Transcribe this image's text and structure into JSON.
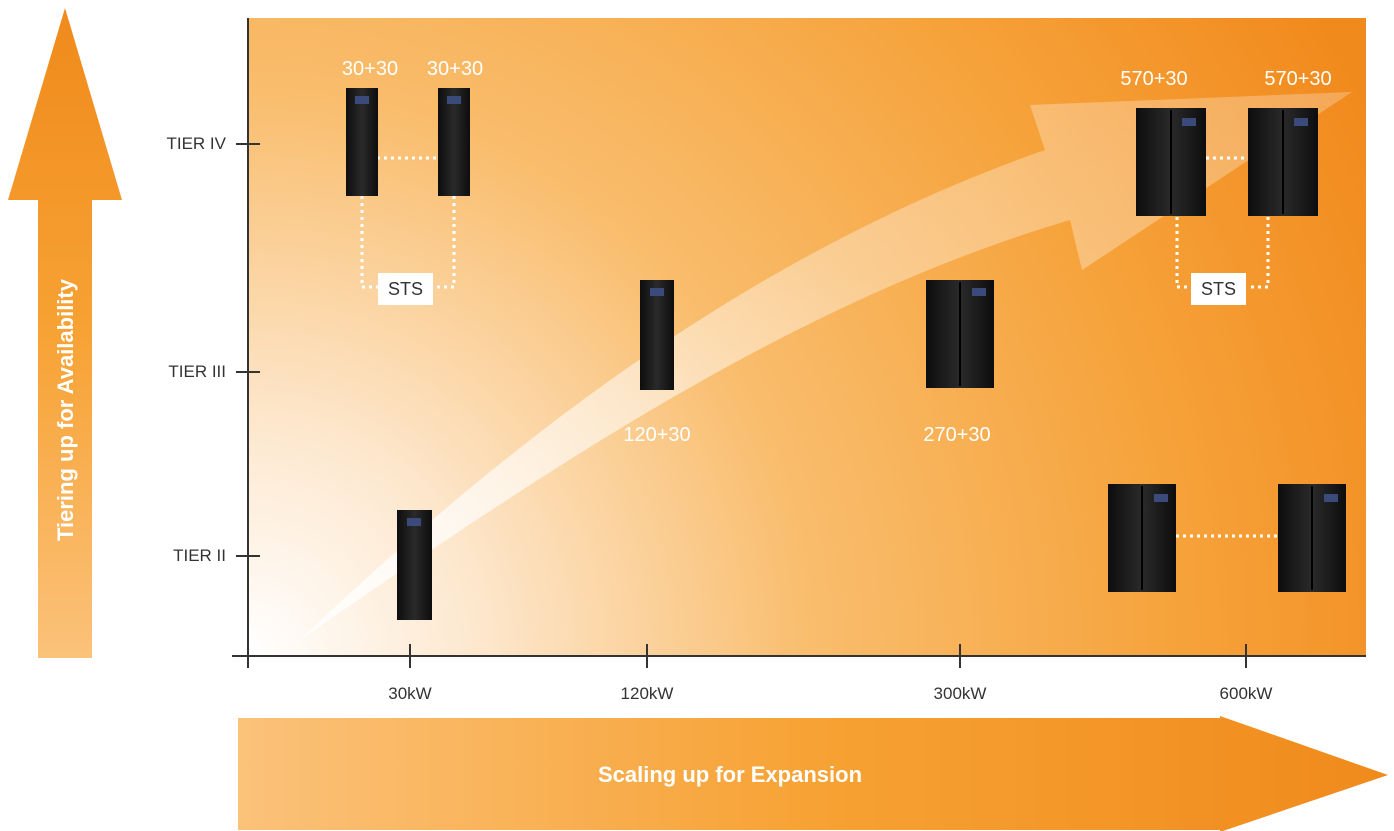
{
  "diagram": {
    "y_axis_title": "Tiering up for Availability",
    "x_axis_title": "Scaling up for Expansion",
    "tiers": [
      {
        "id": "tier4",
        "label": "TIER IV"
      },
      {
        "id": "tier3",
        "label": "TIER III"
      },
      {
        "id": "tier2",
        "label": "TIER II"
      }
    ],
    "capacities": [
      "30kW",
      "120kW",
      "300kW",
      "600kW"
    ],
    "config_labels": {
      "t4_left_a": "30+30",
      "t4_left_b": "30+30",
      "t3_120": "120+30",
      "t3_300": "270+30",
      "t4_right_a": "570+30",
      "t4_right_b": "570+30"
    },
    "sts_label": "STS",
    "colors": {
      "orange_dark": "#f08a1c",
      "orange_mid": "#f7a23b",
      "orange_light": "#fde3c2",
      "cabinet": "#1a1a1a",
      "axis": "#333333"
    }
  }
}
